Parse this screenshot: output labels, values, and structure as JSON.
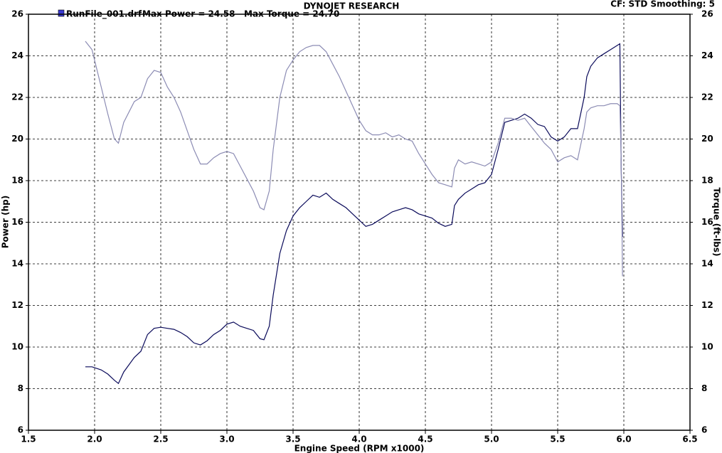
{
  "chart_data": {
    "type": "line",
    "title": "DYNOJET RESEARCH",
    "subtitle": "CF: STD  Smoothing: 5",
    "xlabel": "Engine Speed (RPM x1000)",
    "ylabel": "Power (hp)",
    "y2label": "Torque (ft-lbs)",
    "annotations": [
      "Max Power = 24.58",
      "Max Torque = 24.70"
    ],
    "grid": true,
    "xlim": [
      1.5,
      6.5
    ],
    "xticks": [
      1.5,
      {
        "value": 2,
        "label": "2.0"
      },
      2.5,
      {
        "value": 3,
        "label": "3.0"
      },
      3.5,
      {
        "value": 4,
        "label": "4.0"
      },
      4.5,
      {
        "value": 5,
        "label": "5.0"
      },
      5.5,
      {
        "value": 6,
        "label": "6.0"
      },
      6.5
    ],
    "ylim": [
      6,
      26
    ],
    "yticks": [
      6,
      8,
      10,
      12,
      14,
      16,
      18,
      20,
      22,
      24,
      26
    ],
    "y2lim": [
      6,
      26
    ],
    "y2ticks": [
      6,
      8,
      10,
      12,
      14,
      16,
      18,
      20,
      22,
      24,
      26
    ],
    "x": [
      1.93,
      1.98,
      2.05,
      2.1,
      2.15,
      2.18,
      2.22,
      2.3,
      2.35,
      2.4,
      2.45,
      2.5,
      2.55,
      2.6,
      2.65,
      2.7,
      2.75,
      2.8,
      2.85,
      2.9,
      2.95,
      3.0,
      3.05,
      3.1,
      3.15,
      3.2,
      3.25,
      3.28,
      3.32,
      3.35,
      3.4,
      3.45,
      3.5,
      3.55,
      3.6,
      3.65,
      3.7,
      3.75,
      3.8,
      3.85,
      3.9,
      3.95,
      4.0,
      4.05,
      4.1,
      4.15,
      4.2,
      4.25,
      4.3,
      4.35,
      4.4,
      4.45,
      4.5,
      4.55,
      4.6,
      4.65,
      4.7,
      4.72,
      4.75,
      4.8,
      4.85,
      4.9,
      4.95,
      5.0,
      5.05,
      5.1,
      5.15,
      5.2,
      5.25,
      5.3,
      5.35,
      5.4,
      5.45,
      5.5,
      5.55,
      5.6,
      5.65,
      5.7,
      5.72,
      5.75,
      5.8,
      5.85,
      5.9,
      5.95,
      5.97,
      5.98,
      5.99
    ],
    "series": [
      {
        "name": "RunFile_001.drf",
        "color": "#0a0a5a",
        "values": [
          9.05,
          9.05,
          8.9,
          8.7,
          8.4,
          8.25,
          8.8,
          9.5,
          9.8,
          10.6,
          10.9,
          10.95,
          10.9,
          10.85,
          10.7,
          10.5,
          10.2,
          10.1,
          10.3,
          10.6,
          10.8,
          11.1,
          11.2,
          11.0,
          10.9,
          10.8,
          10.4,
          10.35,
          11.0,
          12.5,
          14.5,
          15.6,
          16.3,
          16.7,
          17.0,
          17.3,
          17.2,
          17.4,
          17.1,
          16.9,
          16.7,
          16.4,
          16.1,
          15.8,
          15.9,
          16.1,
          16.3,
          16.5,
          16.6,
          16.7,
          16.6,
          16.4,
          16.3,
          16.2,
          15.95,
          15.8,
          15.9,
          16.8,
          17.1,
          17.4,
          17.6,
          17.8,
          17.9,
          18.3,
          19.5,
          20.8,
          20.9,
          21.0,
          21.2,
          21.0,
          20.7,
          20.6,
          20.1,
          19.9,
          20.1,
          20.5,
          20.5,
          22.0,
          23.0,
          23.5,
          23.9,
          24.1,
          24.3,
          24.5,
          24.58,
          18.6,
          15.3
        ]
      },
      {
        "color": "#8c8cb4",
        "axis": "y2",
        "values": [
          24.7,
          24.3,
          22.5,
          21.2,
          20.0,
          19.8,
          20.8,
          21.8,
          22.0,
          22.9,
          23.3,
          23.2,
          22.5,
          22.0,
          21.3,
          20.4,
          19.5,
          18.8,
          18.8,
          19.1,
          19.3,
          19.4,
          19.3,
          18.7,
          18.1,
          17.5,
          16.7,
          16.6,
          17.5,
          19.5,
          22.0,
          23.3,
          23.8,
          24.2,
          24.4,
          24.5,
          24.5,
          24.2,
          23.6,
          23.0,
          22.3,
          21.6,
          20.9,
          20.4,
          20.2,
          20.2,
          20.3,
          20.1,
          20.2,
          20.0,
          19.9,
          19.3,
          18.8,
          18.3,
          17.9,
          17.8,
          17.7,
          18.6,
          19.0,
          18.8,
          18.9,
          18.8,
          18.7,
          18.9,
          19.8,
          21.0,
          21.0,
          20.9,
          21.0,
          20.6,
          20.2,
          19.8,
          19.5,
          18.9,
          19.1,
          19.2,
          19.0,
          20.5,
          21.3,
          21.5,
          21.6,
          21.6,
          21.7,
          21.7,
          21.6,
          19.0,
          13.4
        ]
      }
    ]
  }
}
